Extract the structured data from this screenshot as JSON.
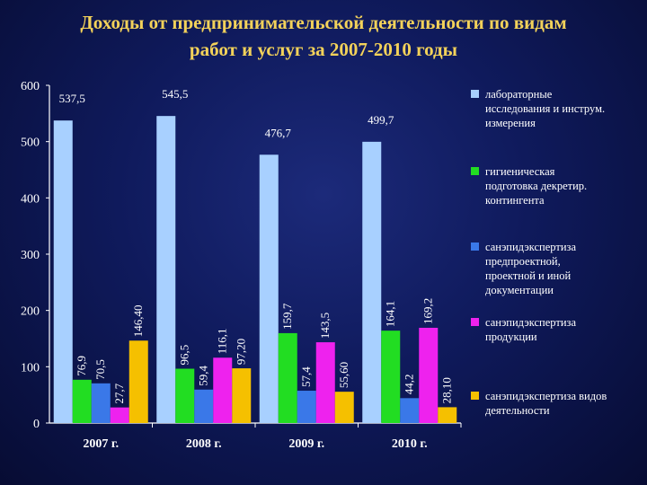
{
  "title_lines": [
    "Доходы от предпринимательской деятельности по видам",
    "работ и услуг за 2007-2010 годы"
  ],
  "colors": {
    "title": "#f3d25a",
    "background": "#0f1a5c"
  },
  "chart_data": {
    "type": "bar",
    "title": "Доходы от предпринимательской деятельности по видам работ и услуг за 2007-2010 годы",
    "categories": [
      "2007 г.",
      "2008 г.",
      "2009 г.",
      "2010 г."
    ],
    "ylim": [
      0,
      600
    ],
    "yticks": [
      0,
      100,
      200,
      300,
      400,
      500,
      600
    ],
    "legend_position": "right",
    "grid": false,
    "series": [
      {
        "name": "лабораторные исследования и инструм. измерения",
        "color": "#a8d0ff",
        "values": [
          537.5,
          545.5,
          476.7,
          499.7
        ],
        "labels": [
          "537,5",
          "545,5",
          "476,7",
          "499,7"
        ]
      },
      {
        "name": "гигиеническая подготовка декретир. контингента",
        "color": "#22dd22",
        "values": [
          76.9,
          96.5,
          159.7,
          164.1
        ],
        "labels": [
          "76,9",
          "96,5",
          "159,7",
          "164,1"
        ]
      },
      {
        "name": "санэпидэкспертиза предпроектной, проектной и иной документации",
        "color": "#3a78e8",
        "values": [
          70.5,
          59.4,
          57.4,
          44.2
        ],
        "labels": [
          "70,5",
          "59,4",
          "57,4",
          "44,2"
        ]
      },
      {
        "name": "санэпидэкспертиза продукции",
        "color": "#ee22ee",
        "values": [
          27.7,
          116.1,
          143.5,
          169.2
        ],
        "labels": [
          "27,7",
          "116,1",
          "143,5",
          "169,2"
        ]
      },
      {
        "name": "санэпидэкспертиза видов деятельности",
        "color": "#f5c000",
        "values": [
          146.4,
          97.2,
          55.6,
          28.1
        ],
        "labels": [
          "146,40",
          "97,20",
          "55,60",
          "28,10"
        ]
      }
    ],
    "legend_lines": [
      [
        "лабораторные",
        "исследования и инструм.",
        "измерения"
      ],
      [
        "гигиеническая",
        "подготовка декретир.",
        "контингента"
      ],
      [
        "санэпидэкспертиза",
        "предпроектной,",
        "проектной и иной",
        "документации"
      ],
      [
        "санэпидэкспертиза",
        "продукции"
      ],
      [
        "санэпидэкспертиза видов",
        "деятельности"
      ]
    ]
  }
}
